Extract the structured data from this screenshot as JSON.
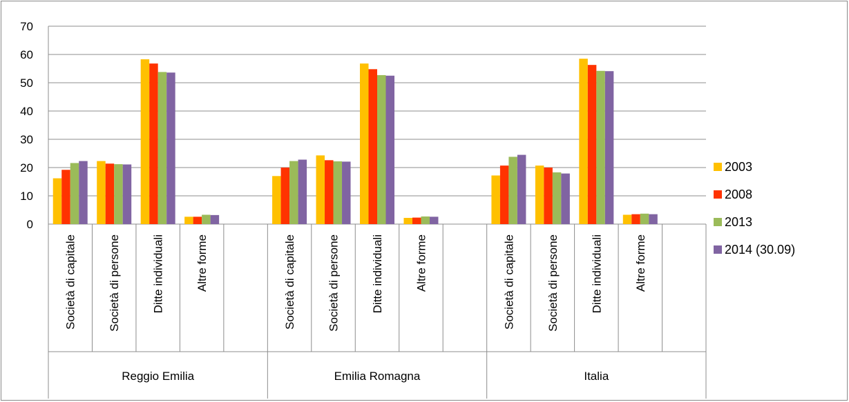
{
  "chart_data": {
    "type": "bar",
    "ylim": [
      0,
      70
    ],
    "yticks": [
      0,
      10,
      20,
      30,
      40,
      50,
      60,
      70
    ],
    "grid": true,
    "legend_position": "right",
    "categories": [
      "Società di capitale",
      "Società di persone",
      "Ditte individuali",
      "Altre forme"
    ],
    "groups": [
      "Reggio Emilia",
      "Emilia Romagna",
      "Italia"
    ],
    "series": [
      {
        "name": "2003",
        "color": "#FFC000",
        "values": [
          [
            16.2,
            22.3,
            58.3,
            2.6
          ],
          [
            17.0,
            24.3,
            56.8,
            2.2
          ],
          [
            17.2,
            20.7,
            58.5,
            3.3
          ]
        ]
      },
      {
        "name": "2008",
        "color": "#FF3300",
        "values": [
          [
            19.2,
            21.4,
            56.8,
            2.6
          ],
          [
            20.0,
            22.6,
            54.8,
            2.3
          ],
          [
            20.7,
            20.0,
            56.3,
            3.5
          ]
        ]
      },
      {
        "name": "2013",
        "color": "#9BBB59",
        "values": [
          [
            21.6,
            21.2,
            53.8,
            3.3
          ],
          [
            22.3,
            22.2,
            52.7,
            2.7
          ],
          [
            23.8,
            18.3,
            54.2,
            3.7
          ]
        ]
      },
      {
        "name": "2014 (30.09)",
        "color": "#8064A2",
        "values": [
          [
            22.3,
            21.1,
            53.6,
            3.2
          ],
          [
            22.8,
            22.1,
            52.5,
            2.6
          ],
          [
            24.5,
            17.9,
            54.1,
            3.5
          ]
        ]
      }
    ]
  }
}
